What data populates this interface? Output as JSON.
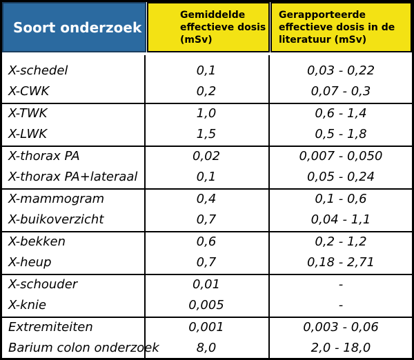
{
  "table": {
    "header": [
      "Soort onderzoek",
      "Gemiddelde effectieve dosis (mSv)",
      "Gerapporteerde effectieve dosis in de literatuur (mSv)"
    ],
    "rows": [
      [
        "X-schedel",
        "0,1",
        "0,03 - 0,22"
      ],
      [
        "X-CWK",
        "0,2",
        "0,07 - 0,3"
      ],
      [
        "X-TWK",
        "1,0",
        "0,6 - 1,4"
      ],
      [
        "X-LWK",
        "1,5",
        "0,5 - 1,8"
      ],
      [
        "X-thorax PA",
        "0,02",
        "0,007 - 0,050"
      ],
      [
        "X-thorax PA+lateraal",
        "0,1",
        "0,05 - 0,24"
      ],
      [
        "X-mammogram",
        "0,4",
        "0,1 - 0,6"
      ],
      [
        "X-buikoverzicht",
        "0,7",
        "0,04 - 1,1"
      ],
      [
        "X-bekken",
        "0,6",
        "0,2 - 1,2"
      ],
      [
        "X-heup",
        "0,7",
        "0,18 - 2,71"
      ],
      [
        "X-schouder",
        "0,01",
        "-"
      ],
      [
        "X-knie",
        "0,005",
        "-"
      ],
      [
        "Extremiteiten",
        "0,001",
        "0,003 - 0,06"
      ],
      [
        "Barium colon onderzoek",
        "8,0",
        "2,0 - 18,0"
      ]
    ]
  }
}
